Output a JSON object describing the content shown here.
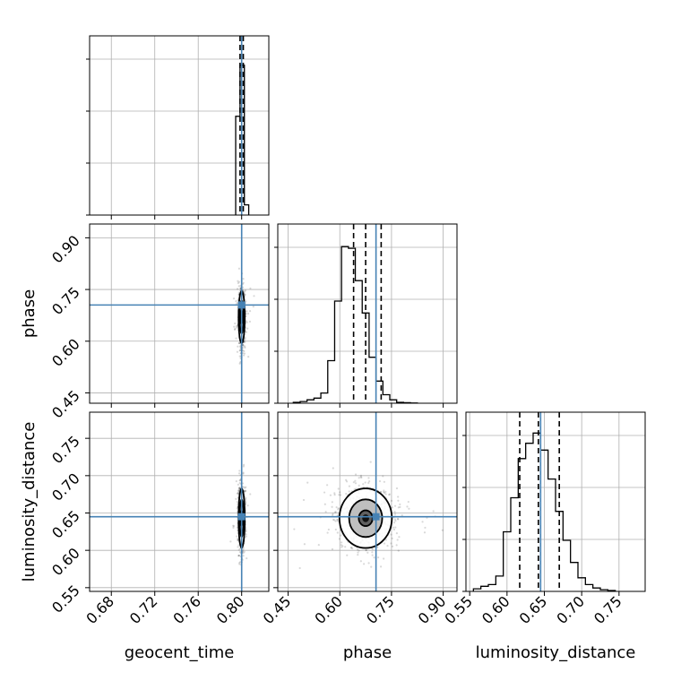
{
  "chart_data": {
    "type": "corner",
    "parameters": [
      "geocent_time",
      "phase",
      "luminosity_distance"
    ],
    "truths": {
      "geocent_time": 0.8,
      "phase": 0.705,
      "luminosity_distance": 0.645
    },
    "truth_color": "#4682b4",
    "grid": true,
    "axes": {
      "geocent_time": {
        "lim": [
          0.66,
          0.825
        ],
        "ticks": [
          0.68,
          0.72,
          0.76,
          0.8
        ],
        "labels": [
          "0.68",
          "0.72",
          "0.76",
          "0.80"
        ]
      },
      "phase": {
        "lim": [
          0.42,
          0.94
        ],
        "ticks": [
          0.45,
          0.6,
          0.75,
          0.9
        ],
        "labels": [
          "0.45",
          "0.60",
          "0.75",
          "0.90"
        ]
      },
      "luminosity_distance": {
        "lim": [
          0.545,
          0.785
        ],
        "ticks": [
          0.55,
          0.6,
          0.65,
          0.7,
          0.75
        ],
        "labels": [
          "0.55",
          "0.60",
          "0.65",
          "0.70",
          "0.75"
        ]
      }
    },
    "histograms": {
      "geocent_time": {
        "edges": [
          0.7945,
          0.7985,
          0.8025,
          0.8065
        ],
        "values": [
          0.58,
          0.88,
          0.06
        ],
        "quantiles": [
          0.7985,
          0.8,
          0.8015
        ]
      },
      "phase": {
        "edges": [
          0.465,
          0.485,
          0.505,
          0.525,
          0.545,
          0.565,
          0.585,
          0.605,
          0.625,
          0.645,
          0.665,
          0.685,
          0.705,
          0.725,
          0.745,
          0.765,
          0.785,
          0.805,
          0.825
        ],
        "values": [
          0.005,
          0.01,
          0.02,
          0.03,
          0.06,
          0.25,
          0.6,
          0.92,
          0.91,
          0.72,
          0.53,
          0.27,
          0.13,
          0.05,
          0.02,
          0.005,
          0.003,
          0.001
        ],
        "quantiles": [
          0.64,
          0.675,
          0.72
        ]
      },
      "luminosity_distance": {
        "edges": [
          0.555,
          0.565,
          0.575,
          0.585,
          0.595,
          0.605,
          0.615,
          0.625,
          0.635,
          0.645,
          0.655,
          0.665,
          0.675,
          0.685,
          0.695,
          0.705,
          0.715,
          0.725,
          0.735,
          0.745
        ],
        "values": [
          0.015,
          0.03,
          0.04,
          0.09,
          0.35,
          0.55,
          0.78,
          0.87,
          0.93,
          0.83,
          0.66,
          0.47,
          0.3,
          0.17,
          0.08,
          0.04,
          0.02,
          0.01,
          0.005
        ],
        "quantiles": [
          0.617,
          0.642,
          0.67
        ]
      }
    },
    "joint": [
      {
        "x": "geocent_time",
        "y": "phase",
        "center": [
          0.8,
          0.67
        ],
        "spread": [
          0.0015,
          0.04
        ],
        "rho": 0.0,
        "contour_scales": [
          0.5,
          1.2,
          1.9
        ]
      },
      {
        "x": "geocent_time",
        "y": "luminosity_distance",
        "center": [
          0.8,
          0.643
        ],
        "spread": [
          0.0015,
          0.021
        ],
        "rho": 0.0,
        "contour_scales": [
          0.5,
          1.2,
          1.9
        ]
      },
      {
        "x": "phase",
        "y": "luminosity_distance",
        "center": [
          0.675,
          0.643
        ],
        "spread": [
          0.04,
          0.021
        ],
        "rho": 0.0,
        "contour_scales": [
          0.5,
          1.2,
          1.9
        ]
      }
    ]
  }
}
